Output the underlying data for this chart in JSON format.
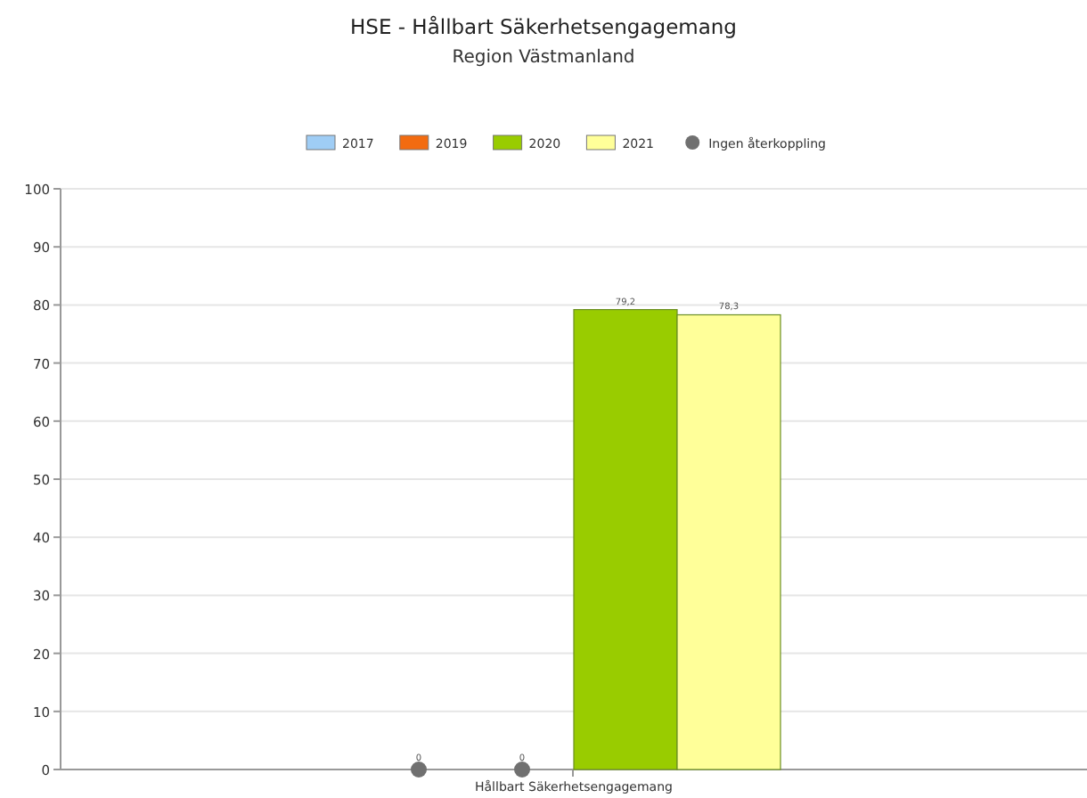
{
  "chart_data": {
    "type": "bar",
    "title": "HSE - Hållbart Säkerhetsengagemang",
    "subtitle": "Region Västmanland",
    "categories": [
      "Hållbart Säkerhetsengagemang"
    ],
    "series": [
      {
        "name": "2017",
        "color": "#9fcdf5",
        "values": [
          null
        ]
      },
      {
        "name": "2019",
        "color": "#f26b10",
        "values": [
          null
        ]
      },
      {
        "name": "2020",
        "color": "#99cc00",
        "values": [
          79.2
        ],
        "value_labels": [
          "79,2"
        ]
      },
      {
        "name": "2021",
        "color": "#ffff99",
        "values": [
          78.3
        ],
        "value_labels": [
          "78,3"
        ]
      },
      {
        "name": "Ingen återkoppling",
        "type": "scatter",
        "color": "#707070",
        "x": [
          "Hållbart Säkerhetsengagemang",
          "Hållbart Säkerhetsengagemang"
        ],
        "values": [
          0,
          0
        ],
        "value_labels": [
          "0",
          "0"
        ]
      }
    ],
    "ylim": [
      0,
      100
    ],
    "yticks": [
      0,
      10,
      20,
      30,
      40,
      50,
      60,
      70,
      80,
      90,
      100
    ],
    "grid": "y",
    "legend": "top",
    "marker": "circle"
  }
}
